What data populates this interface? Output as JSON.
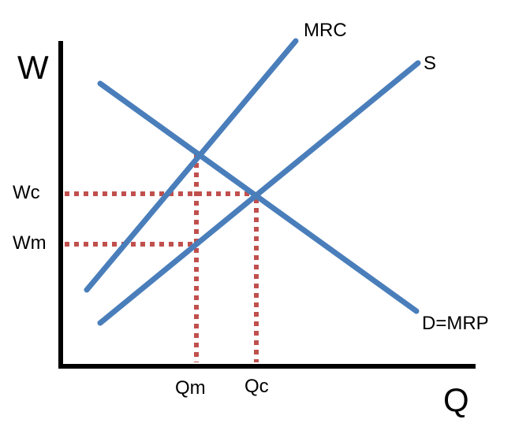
{
  "axes": {
    "y_label": "W",
    "x_label": "Q"
  },
  "curves": {
    "mrc": "MRC",
    "supply": "S",
    "demand": "D=MRP"
  },
  "wage_labels": {
    "wc_main": "W",
    "wc_sub": "c",
    "wm_main": "W",
    "wm_sub": "m"
  },
  "quantity_labels": {
    "qm": "Qm",
    "qc": "Qc"
  },
  "colors": {
    "curve": "#4a7ebb",
    "guide": "#c0504d",
    "axis": "#000000"
  }
}
